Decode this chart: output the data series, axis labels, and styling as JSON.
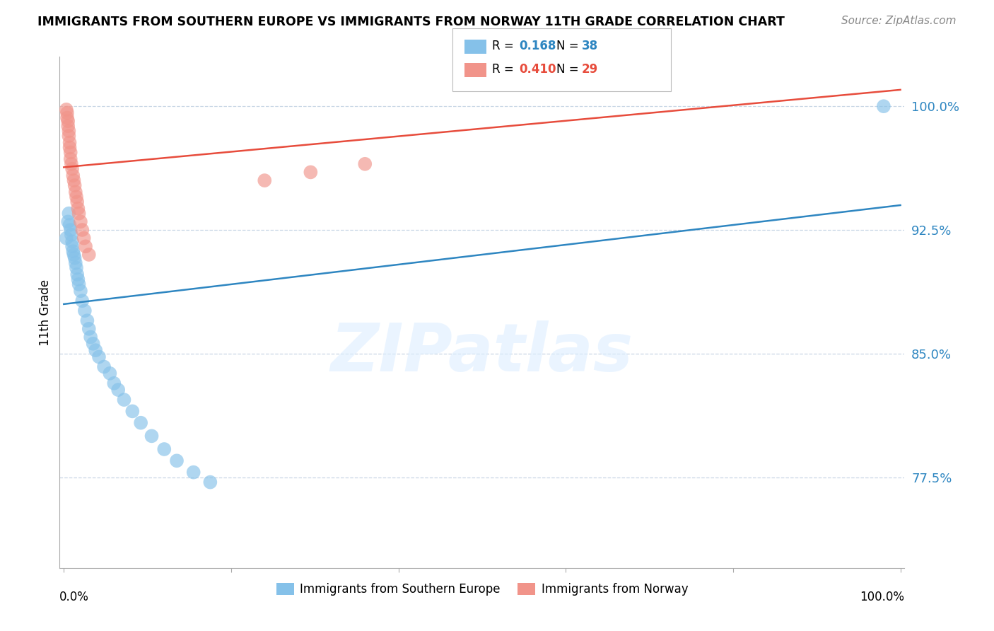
{
  "title": "IMMIGRANTS FROM SOUTHERN EUROPE VS IMMIGRANTS FROM NORWAY 11TH GRADE CORRELATION CHART",
  "source": "Source: ZipAtlas.com",
  "ylabel": "11th Grade",
  "legend_blue_R": "R = ",
  "legend_blue_R_val": "0.168",
  "legend_blue_N": "N = ",
  "legend_blue_N_val": "38",
  "legend_pink_R": "R = ",
  "legend_pink_R_val": "0.410",
  "legend_pink_N": "N = ",
  "legend_pink_N_val": "29",
  "ytick_labels": [
    "100.0%",
    "92.5%",
    "85.0%",
    "77.5%"
  ],
  "ytick_values": [
    1.0,
    0.925,
    0.85,
    0.775
  ],
  "ymin": 0.72,
  "ymax": 1.03,
  "xmin": -0.005,
  "xmax": 1.005,
  "blue_scatter_color": "#85c1e9",
  "blue_line_color": "#2e86c1",
  "pink_scatter_color": "#f1948a",
  "pink_line_color": "#e74c3c",
  "axis_label_color": "#2e86c1",
  "blue_scatter_x": [
    0.003,
    0.005,
    0.006,
    0.007,
    0.008,
    0.009,
    0.01,
    0.01,
    0.011,
    0.012,
    0.013,
    0.014,
    0.015,
    0.016,
    0.017,
    0.018,
    0.02,
    0.022,
    0.025,
    0.028,
    0.03,
    0.032,
    0.035,
    0.038,
    0.042,
    0.048,
    0.055,
    0.06,
    0.065,
    0.072,
    0.082,
    0.092,
    0.105,
    0.12,
    0.135,
    0.155,
    0.175,
    0.98
  ],
  "blue_scatter_y": [
    0.92,
    0.93,
    0.935,
    0.928,
    0.925,
    0.922,
    0.918,
    0.915,
    0.912,
    0.91,
    0.908,
    0.905,
    0.902,
    0.898,
    0.895,
    0.892,
    0.888,
    0.882,
    0.876,
    0.87,
    0.865,
    0.86,
    0.856,
    0.852,
    0.848,
    0.842,
    0.838,
    0.832,
    0.828,
    0.822,
    0.815,
    0.808,
    0.8,
    0.792,
    0.785,
    0.778,
    0.772,
    1.0
  ],
  "pink_scatter_x": [
    0.003,
    0.004,
    0.004,
    0.005,
    0.005,
    0.006,
    0.006,
    0.007,
    0.007,
    0.008,
    0.008,
    0.009,
    0.01,
    0.011,
    0.012,
    0.013,
    0.014,
    0.015,
    0.016,
    0.017,
    0.018,
    0.02,
    0.022,
    0.024,
    0.026,
    0.03,
    0.24,
    0.295,
    0.36
  ],
  "pink_scatter_y": [
    0.998,
    0.996,
    0.993,
    0.991,
    0.988,
    0.985,
    0.982,
    0.978,
    0.975,
    0.972,
    0.968,
    0.965,
    0.962,
    0.958,
    0.955,
    0.952,
    0.948,
    0.945,
    0.942,
    0.938,
    0.935,
    0.93,
    0.925,
    0.92,
    0.915,
    0.91,
    0.955,
    0.96,
    0.965
  ],
  "blue_line_x0": 0.0,
  "blue_line_x1": 1.0,
  "blue_line_y0": 0.88,
  "blue_line_y1": 0.94,
  "pink_line_x0": 0.0,
  "pink_line_x1": 1.0,
  "pink_line_y0": 0.963,
  "pink_line_y1": 1.01,
  "watermark_text": "ZIPatlas",
  "grid_color": "#c8d6e5",
  "background_color": "#ffffff",
  "legend_bottom_blue": "Immigrants from Southern Europe",
  "legend_bottom_pink": "Immigrants from Norway"
}
